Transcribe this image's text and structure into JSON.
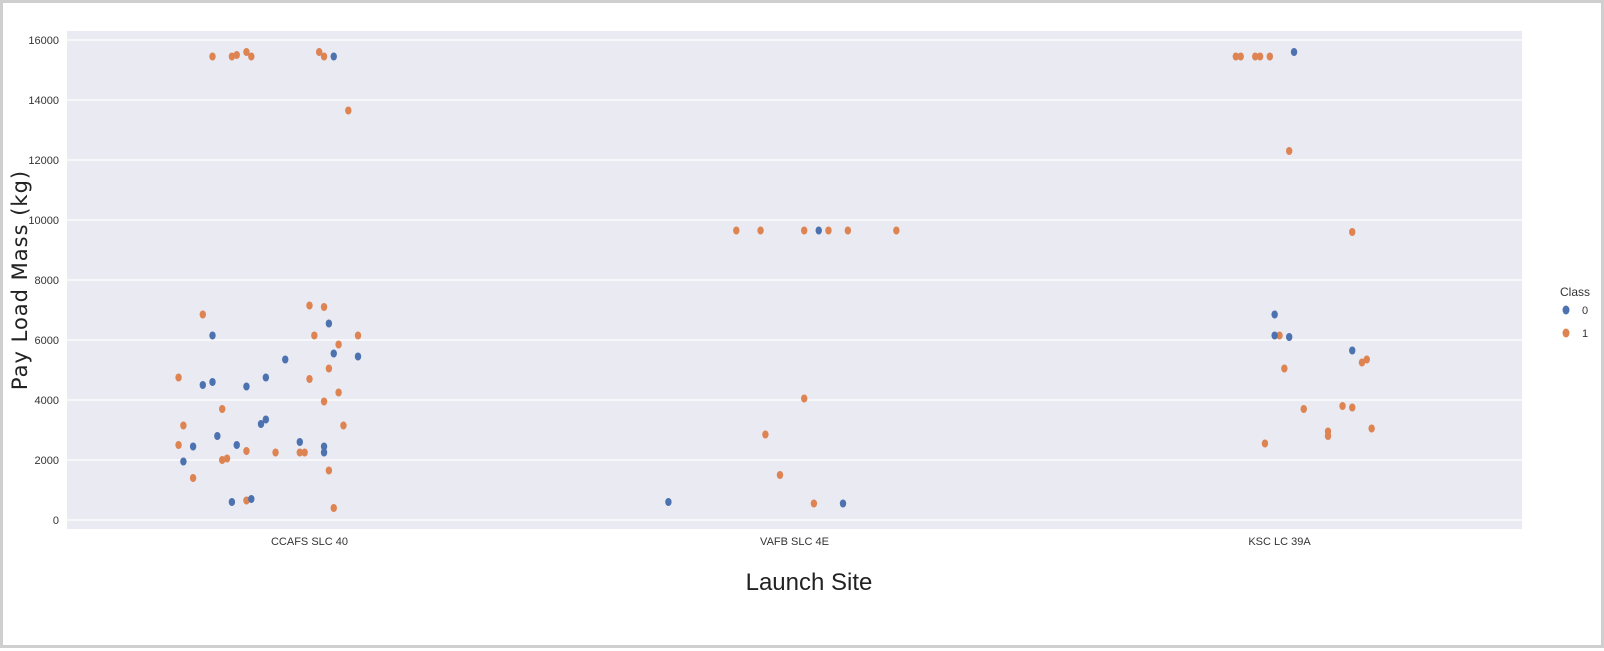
{
  "colors": {
    "background": "#eaeaf2",
    "grid": "#ffffff",
    "class_0": "#4c72b0",
    "class_1": "#dd8452"
  },
  "chart_data": {
    "type": "scatter",
    "title": "",
    "xlabel": "Launch Site",
    "ylabel": "Pay Load Mass (kg)",
    "categories": [
      "CCAFS SLC 40",
      "VAFB SLC 4E",
      "KSC LC 39A"
    ],
    "yticks": [
      "0",
      "2000",
      "4000",
      "6000",
      "8000",
      "10000",
      "12000",
      "14000",
      "16000"
    ],
    "ylim": [
      -300,
      16300
    ],
    "grid": true,
    "legend": {
      "title": "Class",
      "placement": "right",
      "entries": [
        "0",
        "1"
      ]
    },
    "series": [
      {
        "name": "0",
        "points": [
          {
            "site": 0,
            "jitter": -0.26,
            "y": 1950
          },
          {
            "site": 0,
            "jitter": -0.24,
            "y": 2450
          },
          {
            "site": 0,
            "jitter": -0.22,
            "y": 4500
          },
          {
            "site": 0,
            "jitter": -0.2,
            "y": 4600
          },
          {
            "site": 0,
            "jitter": -0.2,
            "y": 6150
          },
          {
            "site": 0,
            "jitter": -0.19,
            "y": 2800
          },
          {
            "site": 0,
            "jitter": -0.15,
            "y": 2500
          },
          {
            "site": 0,
            "jitter": -0.13,
            "y": 4450
          },
          {
            "site": 0,
            "jitter": -0.12,
            "y": 700
          },
          {
            "site": 0,
            "jitter": -0.16,
            "y": 600
          },
          {
            "site": 0,
            "jitter": -0.1,
            "y": 3200
          },
          {
            "site": 0,
            "jitter": -0.09,
            "y": 3350
          },
          {
            "site": 0,
            "jitter": -0.09,
            "y": 4750
          },
          {
            "site": 0,
            "jitter": -0.05,
            "y": 5350
          },
          {
            "site": 0,
            "jitter": -0.02,
            "y": 2600
          },
          {
            "site": 0,
            "jitter": 0.03,
            "y": 2250
          },
          {
            "site": 0,
            "jitter": 0.03,
            "y": 2450
          },
          {
            "site": 0,
            "jitter": 0.05,
            "y": 5550
          },
          {
            "site": 0,
            "jitter": 0.04,
            "y": 6550
          },
          {
            "site": 0,
            "jitter": 0.05,
            "y": 15450
          },
          {
            "site": 0,
            "jitter": 0.1,
            "y": 5450
          },
          {
            "site": 1,
            "jitter": 0.05,
            "y": 9650
          },
          {
            "site": 1,
            "jitter": -0.26,
            "y": 600
          },
          {
            "site": 1,
            "jitter": 0.1,
            "y": 550
          },
          {
            "site": 2,
            "jitter": -0.01,
            "y": 6850
          },
          {
            "site": 2,
            "jitter": -0.01,
            "y": 6150
          },
          {
            "site": 2,
            "jitter": 0.02,
            "y": 6100
          },
          {
            "site": 2,
            "jitter": 0.03,
            "y": 15600
          },
          {
            "site": 2,
            "jitter": 0.15,
            "y": 5650
          }
        ]
      },
      {
        "name": "1",
        "points": [
          {
            "site": 0,
            "jitter": -0.27,
            "y": 4750
          },
          {
            "site": 0,
            "jitter": -0.27,
            "y": 2500
          },
          {
            "site": 0,
            "jitter": -0.26,
            "y": 3150
          },
          {
            "site": 0,
            "jitter": -0.24,
            "y": 1400
          },
          {
            "site": 0,
            "jitter": -0.22,
            "y": 6850
          },
          {
            "site": 0,
            "jitter": -0.2,
            "y": 15450
          },
          {
            "site": 0,
            "jitter": -0.16,
            "y": 15450
          },
          {
            "site": 0,
            "jitter": -0.13,
            "y": 15600
          },
          {
            "site": 0,
            "jitter": -0.12,
            "y": 15450
          },
          {
            "site": 0,
            "jitter": -0.15,
            "y": 15500
          },
          {
            "site": 0,
            "jitter": -0.18,
            "y": 3700
          },
          {
            "site": 0,
            "jitter": -0.18,
            "y": 2000
          },
          {
            "site": 0,
            "jitter": -0.17,
            "y": 2050
          },
          {
            "site": 0,
            "jitter": -0.13,
            "y": 2300
          },
          {
            "site": 0,
            "jitter": -0.13,
            "y": 650
          },
          {
            "site": 0,
            "jitter": -0.07,
            "y": 2250
          },
          {
            "site": 0,
            "jitter": -0.02,
            "y": 2250
          },
          {
            "site": 0,
            "jitter": -0.01,
            "y": 2250
          },
          {
            "site": 0,
            "jitter": 0.0,
            "y": 4700
          },
          {
            "site": 0,
            "jitter": 0.0,
            "y": 7150
          },
          {
            "site": 0,
            "jitter": 0.01,
            "y": 6150
          },
          {
            "site": 0,
            "jitter": 0.02,
            "y": 15600
          },
          {
            "site": 0,
            "jitter": 0.03,
            "y": 15450
          },
          {
            "site": 0,
            "jitter": 0.03,
            "y": 7100
          },
          {
            "site": 0,
            "jitter": 0.03,
            "y": 3950
          },
          {
            "site": 0,
            "jitter": 0.04,
            "y": 5050
          },
          {
            "site": 0,
            "jitter": 0.04,
            "y": 1650
          },
          {
            "site": 0,
            "jitter": 0.05,
            "y": 400
          },
          {
            "site": 0,
            "jitter": 0.06,
            "y": 5850
          },
          {
            "site": 0,
            "jitter": 0.06,
            "y": 4250
          },
          {
            "site": 0,
            "jitter": 0.07,
            "y": 3150
          },
          {
            "site": 0,
            "jitter": 0.08,
            "y": 13650
          },
          {
            "site": 0,
            "jitter": 0.1,
            "y": 6150
          },
          {
            "site": 1,
            "jitter": -0.12,
            "y": 9650
          },
          {
            "site": 1,
            "jitter": -0.07,
            "y": 9650
          },
          {
            "site": 1,
            "jitter": 0.02,
            "y": 9650
          },
          {
            "site": 1,
            "jitter": 0.07,
            "y": 9650
          },
          {
            "site": 1,
            "jitter": 0.11,
            "y": 9650
          },
          {
            "site": 1,
            "jitter": 0.21,
            "y": 9650
          },
          {
            "site": 1,
            "jitter": -0.06,
            "y": 2850
          },
          {
            "site": 1,
            "jitter": -0.03,
            "y": 1500
          },
          {
            "site": 1,
            "jitter": 0.02,
            "y": 4050
          },
          {
            "site": 1,
            "jitter": 0.04,
            "y": 550
          },
          {
            "site": 2,
            "jitter": -0.09,
            "y": 15450
          },
          {
            "site": 2,
            "jitter": -0.08,
            "y": 15450
          },
          {
            "site": 2,
            "jitter": -0.05,
            "y": 15450
          },
          {
            "site": 2,
            "jitter": -0.04,
            "y": 15450
          },
          {
            "site": 2,
            "jitter": -0.03,
            "y": 2550
          },
          {
            "site": 2,
            "jitter": -0.02,
            "y": 15450
          },
          {
            "site": 2,
            "jitter": 0.0,
            "y": 6150
          },
          {
            "site": 2,
            "jitter": 0.01,
            "y": 5050
          },
          {
            "site": 2,
            "jitter": 0.02,
            "y": 12300
          },
          {
            "site": 2,
            "jitter": 0.05,
            "y": 3700
          },
          {
            "site": 2,
            "jitter": 0.1,
            "y": 2800
          },
          {
            "site": 2,
            "jitter": 0.1,
            "y": 2950
          },
          {
            "site": 2,
            "jitter": 0.13,
            "y": 3800
          },
          {
            "site": 2,
            "jitter": 0.15,
            "y": 9600
          },
          {
            "site": 2,
            "jitter": 0.15,
            "y": 3750
          },
          {
            "site": 2,
            "jitter": 0.17,
            "y": 5250
          },
          {
            "site": 2,
            "jitter": 0.18,
            "y": 5350
          },
          {
            "site": 2,
            "jitter": 0.19,
            "y": 3050
          }
        ]
      }
    ]
  }
}
